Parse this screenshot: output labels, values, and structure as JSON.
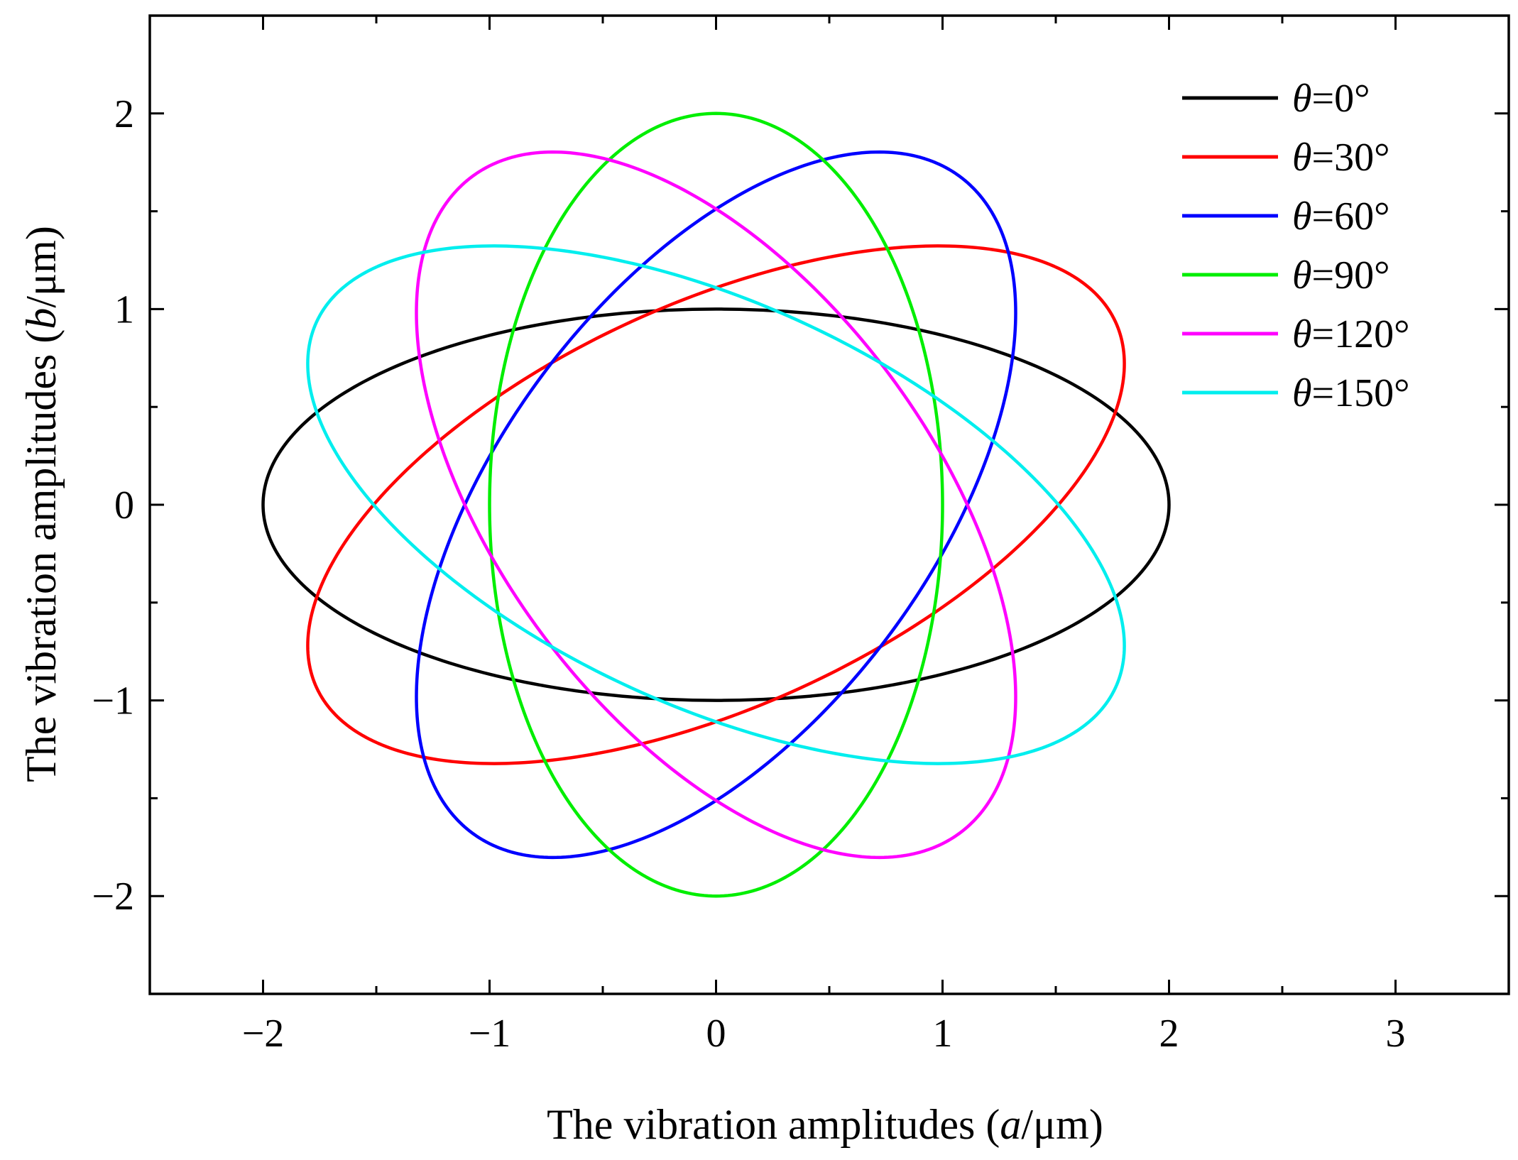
{
  "chart_data": {
    "type": "line",
    "xlabel": {
      "prefix": "The vibration amplitudes (",
      "var": "a",
      "suffix": "/μm)"
    },
    "ylabel": {
      "prefix": "The vibration amplitudes (",
      "var": "b",
      "suffix": "/μm)"
    },
    "xlim": [
      -2.5,
      3.5
    ],
    "ylim": [
      -2.5,
      2.5
    ],
    "xticks": [
      -2,
      -1,
      0,
      1,
      2,
      3
    ],
    "xtick_labels": [
      "−2",
      "−1",
      "0",
      "1",
      "2",
      "3"
    ],
    "yticks": [
      -2,
      -1,
      0,
      1,
      2
    ],
    "ytick_labels": [
      "−2",
      "−1",
      "0",
      "1",
      "2"
    ],
    "x_minor_step": 0.5,
    "y_minor_step": 0.5,
    "grid": false,
    "legend_position": "top-right",
    "series": [
      {
        "name_var": "θ",
        "name_rest": "=0°",
        "theta_deg": 0,
        "semi_major_a": 2,
        "semi_minor_b": 1,
        "color": "#000000"
      },
      {
        "name_var": "θ",
        "name_rest": "=30°",
        "theta_deg": 30,
        "semi_major_a": 2,
        "semi_minor_b": 1,
        "color": "#ff0000"
      },
      {
        "name_var": "θ",
        "name_rest": "=60°",
        "theta_deg": 60,
        "semi_major_a": 2,
        "semi_minor_b": 1,
        "color": "#0000ff"
      },
      {
        "name_var": "θ",
        "name_rest": "=90°",
        "theta_deg": 90,
        "semi_major_a": 2,
        "semi_minor_b": 1,
        "color": "#00ee00"
      },
      {
        "name_var": "θ",
        "name_rest": "=120°",
        "theta_deg": 120,
        "semi_major_a": 2,
        "semi_minor_b": 1,
        "color": "#ff00ff"
      },
      {
        "name_var": "θ",
        "name_rest": "=150°",
        "theta_deg": 150,
        "semi_major_a": 2,
        "semi_minor_b": 1,
        "color": "#00eeee"
      }
    ]
  }
}
